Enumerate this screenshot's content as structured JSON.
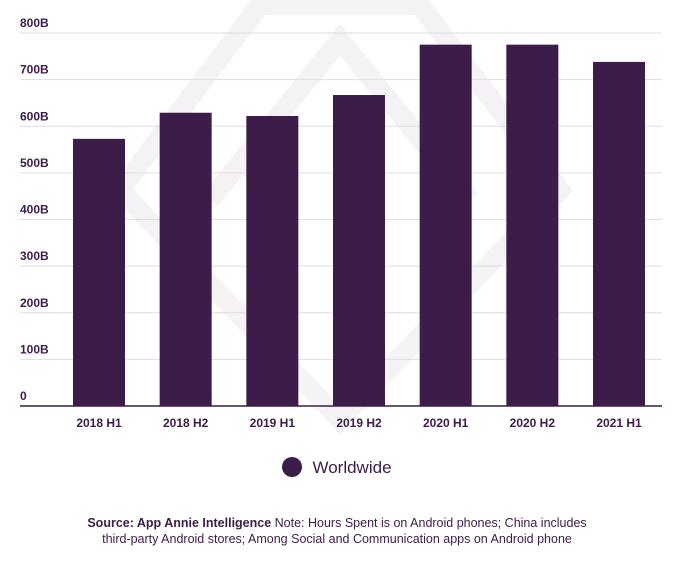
{
  "chart_data": {
    "type": "bar",
    "categories": [
      "2018 H1",
      "2018 H2",
      "2019 H1",
      "2019 H2",
      "2020 H1",
      "2020 H2",
      "2021 H1"
    ],
    "series": [
      {
        "name": "Worldwide",
        "values": [
          573,
          629,
          622,
          667,
          775,
          775,
          738
        ]
      }
    ],
    "ylim": [
      0,
      800
    ],
    "yticks": [
      "0",
      "100B",
      "200B",
      "300B",
      "400B",
      "500B",
      "600B",
      "700B",
      "800B"
    ],
    "ytick_values": [
      0,
      100,
      200,
      300,
      400,
      500,
      600,
      700,
      800
    ],
    "grid": true,
    "legend_placement": "bottom-center",
    "bar_color": "#3c1c49"
  },
  "legend": {
    "label": "Worldwide"
  },
  "footnote": {
    "source": "Source: App Annie Intelligence",
    "note": "Note: Hours Spent is on Android phones; China includes third-party Android stores; Among Social and Communication apps on Android phone"
  }
}
